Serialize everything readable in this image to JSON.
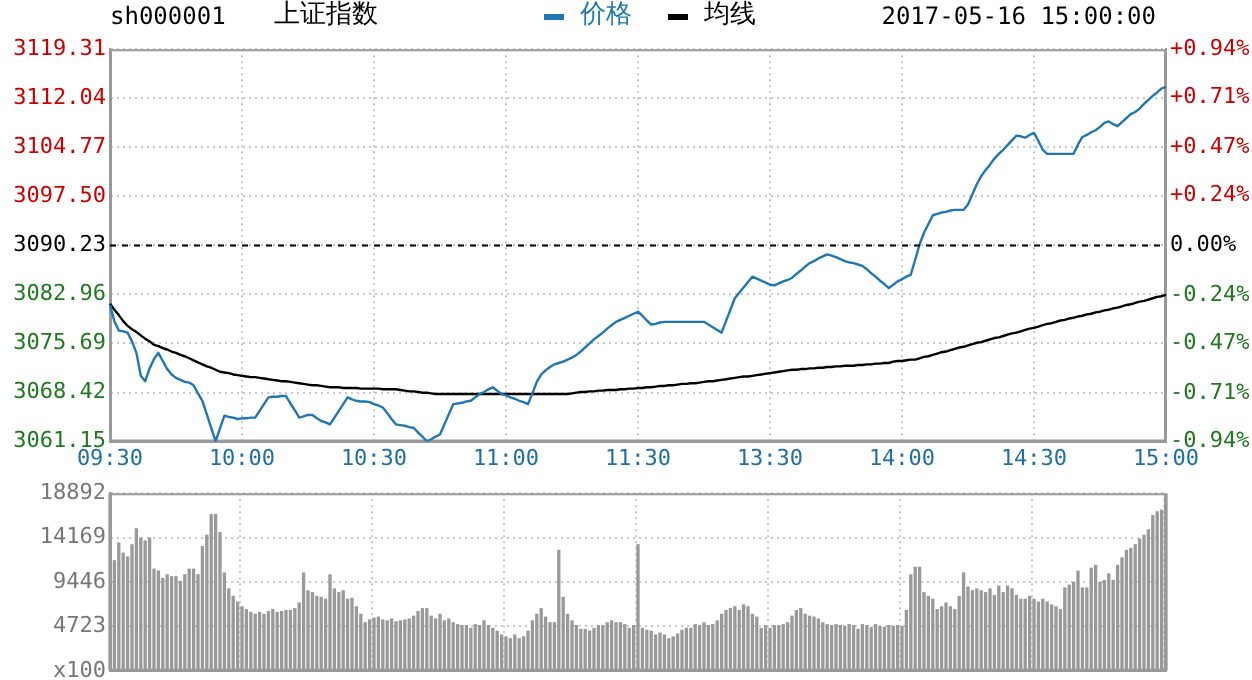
{
  "chart_data": [
    {
      "type": "line",
      "title": "上证指数",
      "subtitle": "sh000001",
      "annotations": [
        "2017-05-16 15:00:00"
      ],
      "legend": "top",
      "grid": true,
      "categories": [
        "09:30",
        null,
        null,
        null,
        null,
        null,
        null,
        null,
        null,
        null,
        null,
        null,
        null,
        null,
        null,
        null,
        null,
        null,
        null,
        null,
        null,
        null,
        null,
        null,
        null,
        null,
        null,
        null,
        null,
        null,
        "10:00",
        null,
        null,
        null,
        null,
        null,
        null,
        null,
        null,
        null,
        null,
        null,
        null,
        null,
        null,
        null,
        null,
        null,
        null,
        null,
        null,
        null,
        null,
        null,
        null,
        null,
        null,
        null,
        null,
        null,
        "10:30",
        null,
        null,
        null,
        null,
        null,
        null,
        null,
        null,
        null,
        null,
        null,
        null,
        null,
        null,
        null,
        null,
        null,
        null,
        null,
        null,
        null,
        null,
        null,
        null,
        null,
        null,
        null,
        null,
        null,
        "11:00",
        null,
        null,
        null,
        null,
        null,
        null,
        null,
        null,
        null,
        null,
        null,
        null,
        null,
        null,
        null,
        null,
        null,
        null,
        null,
        null,
        null,
        null,
        null,
        null,
        null,
        null,
        null,
        null,
        null,
        "11:30",
        null,
        null,
        null,
        null,
        null,
        null,
        null,
        null,
        null,
        null,
        null,
        null,
        null,
        null,
        null,
        null,
        null,
        null,
        null,
        null,
        null,
        null,
        null,
        null,
        null,
        null,
        null,
        null,
        null,
        "13:30",
        null,
        null,
        null,
        null,
        null,
        null,
        null,
        null,
        null,
        null,
        null,
        null,
        null,
        null,
        null,
        null,
        null,
        null,
        null,
        null,
        null,
        null,
        null,
        null,
        null,
        null,
        null,
        null,
        null,
        "14:00",
        null,
        null,
        null,
        null,
        null,
        null,
        null,
        null,
        null,
        null,
        null,
        null,
        null,
        null,
        null,
        null,
        null,
        null,
        null,
        null,
        null,
        null,
        null,
        null,
        null,
        null,
        null,
        null,
        null,
        "14:30",
        null,
        null,
        null,
        null,
        null,
        null,
        null,
        null,
        null,
        null,
        null,
        null,
        null,
        null,
        null,
        null,
        null,
        null,
        null,
        null,
        null,
        null,
        null,
        null,
        null,
        null,
        null,
        null,
        null,
        "15:00"
      ],
      "ylim": [
        3061.15,
        3119.31
      ],
      "yticks": [
        3061.15,
        3068.42,
        3075.69,
        3082.96,
        3090.23,
        {
          "value": 3097.5,
          "label": "3097.50"
        },
        3104.77,
        3112.04,
        3119.31
      ],
      "y2lim": [
        -0.94,
        0.94
      ],
      "y2ticks": [
        {
          "value": -0.94,
          "label": "-0.94%"
        },
        {
          "value": -0.71,
          "label": "-0.71%"
        },
        {
          "value": -0.47,
          "label": "-0.47%"
        },
        {
          "value": -0.24,
          "label": "-0.24%"
        },
        {
          "value": 0,
          "label": "0.00%"
        },
        {
          "value": 0.24,
          "label": "+0.24%"
        },
        {
          "value": 0.47,
          "label": "+0.47%"
        },
        {
          "value": 0.71,
          "label": "+0.71%"
        },
        {
          "value": 0.94,
          "label": "+0.94%"
        }
      ],
      "ref_lines": [
        {
          "axis": "y",
          "value": 3090.23,
          "color": "#000000",
          "line_style": "dashed"
        }
      ],
      "series": [
        {
          "name": "价格",
          "color": "#1f78b4",
          "values": [
            3081.4,
            3079.0,
            3077.6,
            3077.5,
            3077.3,
            3076.0,
            3074.3,
            3070.9,
            3070.1,
            3072.0,
            3073.4,
            3074.3,
            3073.1,
            3071.9,
            3071.1,
            3070.6,
            3070.3,
            3070.0,
            3069.9,
            3069.5,
            3068.3,
            3067.2,
            3065.2,
            3063.2,
            3061.2,
            3063.1,
            3065.0,
            3064.8,
            3064.7,
            3064.5,
            3064.6,
            3064.6,
            3064.7,
            3064.7,
            3065.7,
            3066.7,
            3067.7,
            3067.8,
            3067.8,
            3067.9,
            3067.9,
            3066.8,
            3065.8,
            3064.7,
            3064.9,
            3065.1,
            3065.1,
            3064.6,
            3064.2,
            3064.0,
            3063.7,
            3064.7,
            3065.7,
            3066.7,
            3067.7,
            3067.4,
            3067.2,
            3067.1,
            3067.1,
            3067.0,
            3066.7,
            3066.5,
            3066.2,
            3065.4,
            3064.5,
            3063.7,
            3063.6,
            3063.5,
            3063.3,
            3063.2,
            3062.5,
            3061.9,
            3061.2,
            3061.5,
            3061.9,
            3062.2,
            3063.7,
            3065.2,
            3066.7,
            3066.8,
            3066.9,
            3067.1,
            3067.2,
            3067.7,
            3068.2,
            3068.5,
            3068.9,
            3069.2,
            3068.7,
            3068.2,
            3068.0,
            3067.7,
            3067.5,
            3067.2,
            3067.0,
            3066.7,
            3068.3,
            3070.0,
            3071.1,
            3071.7,
            3072.2,
            3072.6,
            3072.8,
            3073.0,
            3073.3,
            3073.6,
            3074.0,
            3074.5,
            3075.1,
            3075.7,
            3076.3,
            3076.8,
            3077.3,
            3077.9,
            3078.4,
            3078.9,
            3079.2,
            3079.5,
            3079.8,
            3080.1,
            3080.4,
            3079.8,
            3079.1,
            3078.5,
            3078.6,
            3078.8,
            3078.9,
            3078.9,
            3078.9,
            3078.9,
            3078.9,
            3078.9,
            3078.9,
            3078.9,
            3078.9,
            3078.9,
            3078.5,
            3078.1,
            3077.7,
            3077.3,
            3079.0,
            3080.7,
            3082.4,
            3083.2,
            3084.0,
            3084.8,
            3085.6,
            3085.3,
            3085.0,
            3084.7,
            3084.4,
            3084.3,
            3084.6,
            3084.9,
            3085.1,
            3085.4,
            3086.0,
            3086.5,
            3087.1,
            3087.6,
            3087.9,
            3088.3,
            3088.6,
            3088.9,
            3088.7,
            3088.5,
            3088.2,
            3087.9,
            3087.7,
            3087.6,
            3087.4,
            3087.2,
            3086.7,
            3086.1,
            3085.6,
            3085.0,
            3084.5,
            3083.9,
            3084.4,
            3084.9,
            3085.2,
            3085.6,
            3085.9,
            3088.1,
            3090.4,
            3092.1,
            3093.4,
            3094.7,
            3094.9,
            3095.1,
            3095.2,
            3095.4,
            3095.5,
            3095.5,
            3095.5,
            3096.3,
            3097.8,
            3099.3,
            3100.5,
            3101.4,
            3102.2,
            3103.1,
            3103.8,
            3104.4,
            3105.1,
            3105.8,
            3106.5,
            3106.4,
            3106.2,
            3106.6,
            3106.9,
            3105.7,
            3104.4,
            3103.8,
            3103.8,
            3103.8,
            3103.8,
            3103.8,
            3103.8,
            3103.8,
            3105.2,
            3106.3,
            3106.6,
            3107.0,
            3107.3,
            3107.8,
            3108.4,
            3108.6,
            3108.2,
            3107.9,
            3108.5,
            3109.1,
            3109.7,
            3110.0,
            3110.5,
            3111.2,
            3111.8,
            3112.4,
            3112.9,
            3113.5,
            3113.7
          ]
        },
        {
          "name": "均线",
          "color": "#000000",
          "values": [
            3081.6,
            3080.7,
            3079.9,
            3079.0,
            3078.3,
            3077.8,
            3077.4,
            3076.9,
            3076.4,
            3076.0,
            3075.5,
            3075.3,
            3075.0,
            3074.8,
            3074.5,
            3074.3,
            3074.0,
            3073.8,
            3073.5,
            3073.2,
            3072.9,
            3072.6,
            3072.3,
            3072.1,
            3071.8,
            3071.5,
            3071.4,
            3071.3,
            3071.1,
            3071.0,
            3070.9,
            3070.8,
            3070.7,
            3070.7,
            3070.6,
            3070.5,
            3070.4,
            3070.3,
            3070.2,
            3070.1,
            3070.1,
            3070.0,
            3069.9,
            3069.8,
            3069.7,
            3069.6,
            3069.5,
            3069.5,
            3069.4,
            3069.3,
            3069.2,
            3069.2,
            3069.2,
            3069.1,
            3069.1,
            3069.1,
            3069.1,
            3069.0,
            3069.0,
            3069.0,
            3069.0,
            3069.0,
            3068.9,
            3068.9,
            3068.9,
            3068.9,
            3068.8,
            3068.7,
            3068.6,
            3068.6,
            3068.5,
            3068.4,
            3068.4,
            3068.3,
            3068.2,
            3068.2,
            3068.2,
            3068.2,
            3068.2,
            3068.2,
            3068.2,
            3068.2,
            3068.2,
            3068.2,
            3068.2,
            3068.2,
            3068.2,
            3068.2,
            3068.2,
            3068.2,
            3068.2,
            3068.2,
            3068.2,
            3068.2,
            3068.2,
            3068.2,
            3068.2,
            3068.2,
            3068.2,
            3068.2,
            3068.2,
            3068.2,
            3068.2,
            3068.2,
            3068.2,
            3068.3,
            3068.4,
            3068.5,
            3068.5,
            3068.6,
            3068.6,
            3068.7,
            3068.7,
            3068.8,
            3068.8,
            3068.8,
            3068.9,
            3068.9,
            3069.0,
            3069.0,
            3069.1,
            3069.1,
            3069.2,
            3069.2,
            3069.3,
            3069.4,
            3069.4,
            3069.5,
            3069.5,
            3069.6,
            3069.7,
            3069.7,
            3069.8,
            3069.8,
            3069.9,
            3070.0,
            3070.1,
            3070.1,
            3070.2,
            3070.3,
            3070.4,
            3070.5,
            3070.6,
            3070.7,
            3070.8,
            3070.8,
            3070.9,
            3071.0,
            3071.1,
            3071.2,
            3071.3,
            3071.4,
            3071.5,
            3071.6,
            3071.7,
            3071.8,
            3071.8,
            3071.9,
            3071.9,
            3072.0,
            3072.0,
            3072.1,
            3072.1,
            3072.2,
            3072.2,
            3072.3,
            3072.3,
            3072.4,
            3072.4,
            3072.4,
            3072.5,
            3072.5,
            3072.6,
            3072.6,
            3072.7,
            3072.7,
            3072.8,
            3072.8,
            3073.0,
            3073.1,
            3073.1,
            3073.2,
            3073.3,
            3073.3,
            3073.5,
            3073.7,
            3073.8,
            3074.0,
            3074.2,
            3074.4,
            3074.5,
            3074.7,
            3074.9,
            3075.1,
            3075.2,
            3075.4,
            3075.6,
            3075.8,
            3075.9,
            3076.1,
            3076.3,
            3076.5,
            3076.6,
            3076.8,
            3077.0,
            3077.2,
            3077.3,
            3077.5,
            3077.7,
            3077.9,
            3078.0,
            3078.2,
            3078.4,
            3078.6,
            3078.7,
            3078.9,
            3079.1,
            3079.2,
            3079.4,
            3079.5,
            3079.7,
            3079.8,
            3080.0,
            3080.1,
            3080.3,
            3080.4,
            3080.6,
            3080.7,
            3080.9,
            3081.0,
            3081.2,
            3081.4,
            3081.5,
            3081.7,
            3081.9,
            3082.0,
            3082.2,
            3082.4,
            3082.6,
            3082.7,
            3082.9
          ]
        }
      ]
    },
    {
      "type": "bar",
      "grid": true,
      "tick_labels": "y",
      "categories": [
        null,
        null,
        null,
        null,
        null,
        null,
        null,
        null,
        null,
        null,
        null,
        null,
        null,
        null,
        null,
        null,
        null,
        null,
        null,
        null,
        null,
        null,
        null,
        null,
        null,
        null,
        null,
        null,
        null,
        null,
        null,
        null,
        null,
        null,
        null,
        null,
        null,
        null,
        null,
        null,
        null,
        null,
        null,
        null,
        null,
        null,
        null,
        null,
        null,
        null,
        null,
        null,
        null,
        null,
        null,
        null,
        null,
        null,
        null,
        null,
        null,
        null,
        null,
        null,
        null,
        null,
        null,
        null,
        null,
        null,
        null,
        null,
        null,
        null,
        null,
        null,
        null,
        null,
        null,
        null,
        null,
        null,
        null,
        null,
        null,
        null,
        null,
        null,
        null,
        null,
        null,
        null,
        null,
        null,
        null,
        null,
        null,
        null,
        null,
        null,
        null,
        null,
        null,
        null,
        null,
        null,
        null,
        null,
        null,
        null,
        null,
        null,
        null,
        null,
        null,
        null,
        null,
        null,
        null,
        null,
        null,
        null,
        null,
        null,
        null,
        null,
        null,
        null,
        null,
        null,
        null,
        null,
        null,
        null,
        null,
        null,
        null,
        null,
        null,
        null,
        null,
        null,
        null,
        null,
        null,
        null,
        null,
        null,
        null,
        null,
        null,
        null,
        null,
        null,
        null,
        null,
        null,
        null,
        null,
        null,
        null,
        null,
        null,
        null,
        null,
        null,
        null,
        null,
        null,
        null,
        null,
        null,
        null,
        null,
        null,
        null,
        null,
        null,
        null,
        null,
        null,
        null,
        null,
        null,
        null,
        null,
        null,
        null,
        null,
        null,
        null,
        null,
        null,
        null,
        null,
        null,
        null,
        null,
        null,
        null,
        null,
        null,
        null,
        null,
        null,
        null,
        null,
        null,
        null,
        null,
        null,
        null,
        null,
        null,
        null,
        null,
        null,
        null,
        null,
        null,
        null,
        null,
        null,
        null,
        null,
        null,
        null,
        null,
        null,
        null,
        null,
        null,
        null,
        null,
        null,
        null,
        null,
        null,
        null,
        null,
        null
      ],
      "ylim": [
        0,
        18892
      ],
      "yticks": [
        {
          "value": 0,
          "label": "x100"
        },
        4723,
        9446,
        14169,
        18892
      ],
      "color": "#999999",
      "values": [
        18800,
        11700,
        13600,
        12500,
        12100,
        13400,
        15100,
        14100,
        13800,
        14100,
        10800,
        10600,
        9800,
        10200,
        10000,
        10000,
        9500,
        10200,
        10800,
        10800,
        10200,
        13200,
        14400,
        16600,
        16600,
        14700,
        10400,
        8700,
        7900,
        7300,
        6800,
        6500,
        6200,
        6000,
        6200,
        6000,
        6300,
        6500,
        6200,
        6300,
        6400,
        6400,
        6600,
        7200,
        10400,
        8500,
        8300,
        7900,
        7800,
        7600,
        10200,
        8700,
        8300,
        8500,
        7600,
        7700,
        6800,
        6000,
        5100,
        5400,
        5600,
        5700,
        5400,
        5300,
        5500,
        5200,
        5300,
        5400,
        5500,
        5800,
        6300,
        6600,
        6600,
        5800,
        5500,
        6000,
        5300,
        5500,
        5100,
        4900,
        4800,
        4800,
        4500,
        4900,
        4800,
        5300,
        4800,
        4500,
        4200,
        3800,
        3600,
        3400,
        3800,
        3400,
        3600,
        4200,
        5300,
        6000,
        6600,
        5700,
        5100,
        5100,
        12800,
        7800,
        6000,
        5300,
        4800,
        4400,
        4400,
        4200,
        4500,
        4800,
        4800,
        5100,
        5300,
        5100,
        5100,
        4900,
        4500,
        4800,
        13400,
        4500,
        4300,
        4200,
        3800,
        4000,
        3800,
        3400,
        3600,
        3900,
        4300,
        4500,
        4500,
        4900,
        4800,
        5100,
        4800,
        4900,
        5300,
        6000,
        6400,
        6600,
        6800,
        6400,
        7000,
        6800,
        6000,
        5700,
        4500,
        4800,
        4500,
        4800,
        4800,
        4900,
        5100,
        5800,
        6400,
        6600,
        6000,
        5800,
        5700,
        5500,
        5100,
        4900,
        4800,
        4900,
        4800,
        4700,
        4900,
        4800,
        4400,
        4900,
        4800,
        4600,
        4900,
        4700,
        4600,
        4800,
        4700,
        4800,
        4700,
        6400,
        10200,
        11000,
        11000,
        8300,
        7900,
        7600,
        6500,
        6800,
        7200,
        6800,
        6500,
        7900,
        10400,
        8900,
        8500,
        8700,
        8500,
        8300,
        8700,
        8000,
        9000,
        8300,
        9000,
        8700,
        8000,
        7600,
        7600,
        7900,
        7600,
        7300,
        7600,
        7300,
        7000,
        6800,
        6500,
        8800,
        9100,
        9400,
        10600,
        8800,
        8800,
        10900,
        11200,
        9400,
        9600,
        10300,
        9600,
        11200,
        12000,
        12800,
        13000,
        13400,
        14000,
        14400,
        15000,
        16500,
        16900,
        17100,
        18800
      ]
    }
  ]
}
